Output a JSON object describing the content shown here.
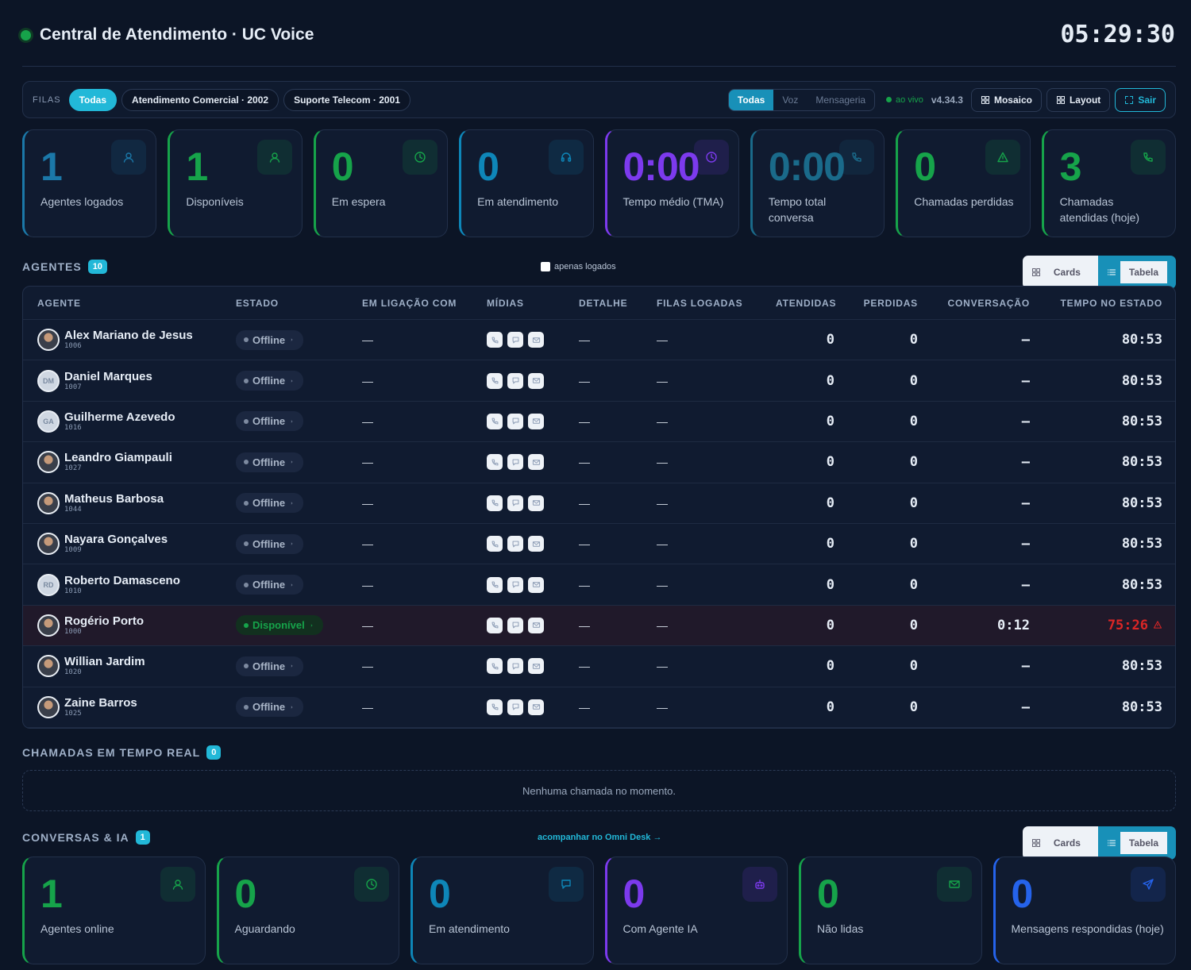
{
  "header": {
    "title": "Central de Atendimento · UC Voice",
    "clock": "05:29:30"
  },
  "filters": {
    "label": "FILAS",
    "queues": [
      "Todas",
      "Atendimento Comercial · 2002",
      "Suporte Telecom · 2001"
    ],
    "media": [
      "Todas",
      "Voz",
      "Mensageria"
    ],
    "status": "ao vivo",
    "version": "v4.34.3",
    "buttons": [
      "Mosaico",
      "Layout",
      "Sair"
    ]
  },
  "kpis": [
    {
      "value": 1,
      "label": "Agentes logados",
      "color": "#1b78a8"
    },
    {
      "value": 1,
      "label": "Disponíveis",
      "color": "#16a34a"
    },
    {
      "value": 0,
      "label": "Em espera",
      "color": "#16a34a"
    },
    {
      "value": 0,
      "label": "Em atendimento",
      "color": "#0e86b8"
    },
    {
      "value": "0:00",
      "label": "Tempo médio (TMA)",
      "color": "#7c3aed"
    },
    {
      "value": "0:00",
      "label": "Tempo total conversa",
      "color": "#1a6a8a"
    },
    {
      "value": 0,
      "label": "Chamadas perdidas",
      "color": "#16a34a"
    },
    {
      "value": 3,
      "label": "Chamadas atendidas (hoje)",
      "color": "#16a34a"
    }
  ],
  "agents": {
    "title": "AGENTES",
    "count": 10,
    "filter": "apenas logados",
    "views": [
      "Cards",
      "Tabela"
    ],
    "columns": [
      "AGENTE",
      "ESTADO",
      "EM LIGAÇÃO COM",
      "MÍDIAS",
      "DETALHE",
      "FILAS LOGADAS",
      "ATENDIDAS",
      "PERDIDAS",
      "CONVERSAÇÃO",
      "TEMPO NO ESTADO"
    ],
    "rows": [
      {
        "name": "Alex Mariano de Jesus",
        "extension": "1006",
        "status": "Offline",
        "in_call": "—",
        "detail": "—",
        "queues": "—",
        "answered": 0,
        "lost": 0,
        "conversation": "—",
        "time": "80:53"
      },
      {
        "name": "Daniel Marques",
        "extension": "1007",
        "initials": "DM",
        "status": "Offline",
        "in_call": "—",
        "detail": "—",
        "queues": "—",
        "answered": 0,
        "lost": 0,
        "conversation": "—",
        "time": "80:53"
      },
      {
        "name": "Guilherme Azevedo",
        "extension": "1016",
        "initials": "GA",
        "status": "Offline",
        "in_call": "—",
        "detail": "—",
        "queues": "—",
        "answered": 0,
        "lost": 0,
        "conversation": "—",
        "time": "80:53"
      },
      {
        "name": "Leandro Giampauli",
        "extension": "1027",
        "status": "Offline",
        "in_call": "—",
        "detail": "—",
        "queues": "—",
        "answered": 0,
        "lost": 0,
        "conversation": "—",
        "time": "80:53"
      },
      {
        "name": "Matheus Barbosa",
        "extension": "1044",
        "status": "Offline",
        "in_call": "—",
        "detail": "—",
        "queues": "—",
        "answered": 0,
        "lost": 0,
        "conversation": "—",
        "time": "80:53"
      },
      {
        "name": "Nayara Gonçalves",
        "extension": "1009",
        "status": "Offline",
        "in_call": "—",
        "detail": "—",
        "queues": "—",
        "answered": 0,
        "lost": 0,
        "conversation": "—",
        "time": "80:53"
      },
      {
        "name": "Roberto Damasceno",
        "extension": "1010",
        "initials": "RD",
        "status": "Offline",
        "in_call": "—",
        "detail": "—",
        "queues": "—",
        "answered": 0,
        "lost": 0,
        "conversation": "—",
        "time": "80:53"
      },
      {
        "name": "Rogério Porto",
        "extension": "1000",
        "status": "Disponível",
        "in_call": "—",
        "detail": "—",
        "queues": "—",
        "answered": 0,
        "lost": 0,
        "conversation": "0:12",
        "time": "75:26",
        "alert": true
      },
      {
        "name": "Willian Jardim",
        "extension": "1020",
        "status": "Offline",
        "in_call": "—",
        "detail": "—",
        "queues": "—",
        "answered": 0,
        "lost": 0,
        "conversation": "—",
        "time": "80:53"
      },
      {
        "name": "Zaine Barros",
        "extension": "1025",
        "status": "Offline",
        "in_call": "—",
        "detail": "—",
        "queues": "—",
        "answered": 0,
        "lost": 0,
        "conversation": "—",
        "time": "80:53"
      }
    ]
  },
  "calls": {
    "title": "CHAMADAS EM TEMPO REAL",
    "count": 0,
    "empty": "Nenhuma chamada no momento."
  },
  "conversations": {
    "title": "CONVERSAS & IA",
    "count": 1,
    "link": "acompanhar no Omni Desk →",
    "views": [
      "Cards",
      "Tabela"
    ],
    "kpis": [
      {
        "value": 1,
        "label": "Agentes online",
        "color": "#16a34a"
      },
      {
        "value": 0,
        "label": "Aguardando",
        "color": "#16a34a"
      },
      {
        "value": 0,
        "label": "Em atendimento",
        "color": "#0e86b8"
      },
      {
        "value": 0,
        "label": "Com Agente IA",
        "color": "#7c3aed"
      },
      {
        "value": 0,
        "label": "Não lidas",
        "color": "#16a34a"
      },
      {
        "value": 0,
        "label": "Mensagens respondidas (hoje)",
        "color": "#2563eb"
      }
    ]
  }
}
